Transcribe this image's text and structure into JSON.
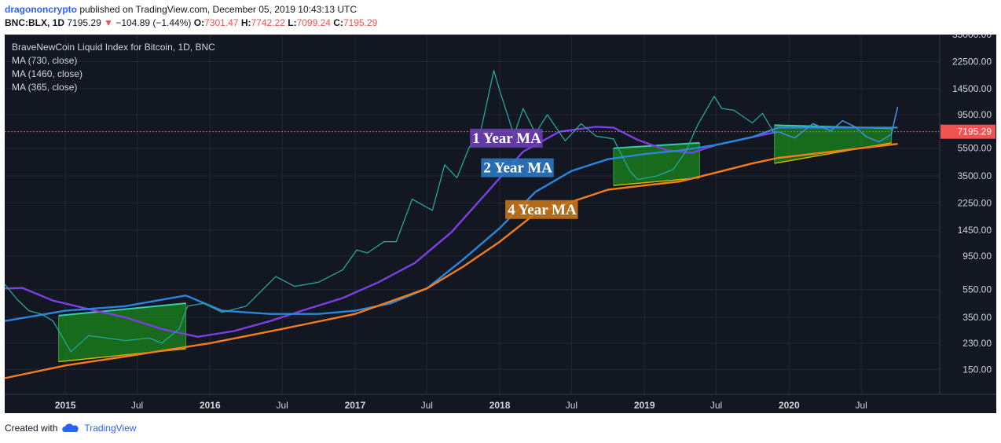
{
  "header": {
    "user": "dragononcrypto",
    "published": " published on TradingView.com, December 05, 2019 10:43:13 UTC",
    "symbol": "BNC:BLX, 1D",
    "last": "7195.29",
    "change": "−104.89 (−1.44%)",
    "o_label": "O:",
    "o_val": "7301.47",
    "h_label": "H:",
    "h_val": "7742.22",
    "l_label": "L:",
    "l_val": "7099.24",
    "c_label": "C:",
    "c_val": "7195.29"
  },
  "footer": {
    "created_with": "Created with",
    "brand": "TradingView"
  },
  "colors": {
    "background": "#131722",
    "ma365": "#7b3fe4",
    "ma730": "#2a86dc",
    "ma1460": "#f57c1f",
    "up": "#26a69a",
    "down": "#ef5350",
    "box": "#1b8a1b",
    "price_label": "#ef5350"
  },
  "chart_data": {
    "type": "line",
    "title": "BraveNewCoin Liquid Index for Bitcoin, 1D, BNC",
    "scale": "log",
    "ylim": [
      100,
      35000
    ],
    "yticks": [
      150,
      230,
      350,
      550,
      950,
      1450,
      2250,
      3500,
      5500,
      9500,
      14500,
      22500,
      35000
    ],
    "ytick_labels": [
      "150.00",
      "230.00",
      "350.00",
      "550.00",
      "950.00",
      "1450.00",
      "2250.00",
      "3500.00",
      "5500.00",
      "9500.00",
      "14500.00",
      "22500.00",
      "35000.00"
    ],
    "xlim": [
      "2014-08-01",
      "2021-01-15"
    ],
    "xticks": [
      {
        "date": "2015-01-01",
        "label": "2015",
        "bold": true
      },
      {
        "date": "2015-07-01",
        "label": "Jul",
        "bold": false
      },
      {
        "date": "2016-01-01",
        "label": "2016",
        "bold": true
      },
      {
        "date": "2016-07-01",
        "label": "Jul",
        "bold": false
      },
      {
        "date": "2017-01-01",
        "label": "2017",
        "bold": true
      },
      {
        "date": "2017-07-01",
        "label": "Jul",
        "bold": false
      },
      {
        "date": "2018-01-01",
        "label": "2018",
        "bold": true
      },
      {
        "date": "2018-07-01",
        "label": "Jul",
        "bold": false
      },
      {
        "date": "2019-01-01",
        "label": "2019",
        "bold": true
      },
      {
        "date": "2019-07-01",
        "label": "Jul",
        "bold": false
      },
      {
        "date": "2020-01-01",
        "label": "2020",
        "bold": true
      },
      {
        "date": "2020-07-01",
        "label": "Jul",
        "bold": false
      }
    ],
    "legend": [
      "MA (730, close)",
      "MA (1460, close)",
      "MA (365, close)"
    ],
    "last_price": 7195.29,
    "last_price_label": "7195.29",
    "annotations": [
      "1 Year MA",
      "2 Year MA",
      "4 Year MA"
    ],
    "series": [
      {
        "name": "1 Year MA",
        "color": "#7b3fe4",
        "points": [
          [
            "2014-08-01",
            560
          ],
          [
            "2014-09-15",
            565
          ],
          [
            "2014-12-01",
            460
          ],
          [
            "2015-03-01",
            400
          ],
          [
            "2015-06-01",
            350
          ],
          [
            "2015-09-01",
            290
          ],
          [
            "2015-12-01",
            255
          ],
          [
            "2016-03-01",
            280
          ],
          [
            "2016-06-01",
            330
          ],
          [
            "2016-09-01",
            400
          ],
          [
            "2016-12-01",
            480
          ],
          [
            "2017-03-01",
            620
          ],
          [
            "2017-06-01",
            850
          ],
          [
            "2017-09-01",
            1400
          ],
          [
            "2017-12-01",
            2700
          ],
          [
            "2018-03-01",
            5200
          ],
          [
            "2018-06-01",
            7200
          ],
          [
            "2018-09-01",
            7800
          ],
          [
            "2018-10-15",
            7700
          ],
          [
            "2018-12-15",
            6300
          ],
          [
            "2019-03-01",
            5300
          ],
          [
            "2019-05-01",
            5100
          ],
          [
            "2019-07-01",
            5800
          ],
          [
            "2019-10-01",
            6600
          ],
          [
            "2019-12-05",
            7200
          ]
        ]
      },
      {
        "name": "2 Year MA",
        "color": "#2a86dc",
        "points": [
          [
            "2014-08-01",
            330
          ],
          [
            "2015-01-01",
            390
          ],
          [
            "2015-06-01",
            420
          ],
          [
            "2015-11-01",
            500
          ],
          [
            "2016-02-01",
            390
          ],
          [
            "2016-06-01",
            370
          ],
          [
            "2016-10-01",
            370
          ],
          [
            "2017-01-01",
            390
          ],
          [
            "2017-04-01",
            440
          ],
          [
            "2017-07-01",
            560
          ],
          [
            "2017-10-01",
            900
          ],
          [
            "2018-01-01",
            1500
          ],
          [
            "2018-04-01",
            2700
          ],
          [
            "2018-07-01",
            3800
          ],
          [
            "2018-10-01",
            4600
          ],
          [
            "2019-01-01",
            5000
          ],
          [
            "2019-04-01",
            5300
          ],
          [
            "2019-07-01",
            5800
          ],
          [
            "2019-10-01",
            6600
          ],
          [
            "2019-12-05",
            7700
          ],
          [
            "2020-10-01",
            7700
          ]
        ]
      },
      {
        "name": "4 Year MA",
        "color": "#f57c1f",
        "points": [
          [
            "2014-08-01",
            130
          ],
          [
            "2015-01-01",
            160
          ],
          [
            "2015-06-01",
            185
          ],
          [
            "2016-01-01",
            230
          ],
          [
            "2016-07-01",
            290
          ],
          [
            "2017-01-01",
            370
          ],
          [
            "2017-07-01",
            560
          ],
          [
            "2017-10-01",
            800
          ],
          [
            "2018-01-01",
            1200
          ],
          [
            "2018-04-01",
            1900
          ],
          [
            "2018-07-01",
            2300
          ],
          [
            "2018-10-01",
            2800
          ],
          [
            "2019-01-01",
            3000
          ],
          [
            "2019-04-01",
            3200
          ],
          [
            "2019-07-01",
            3700
          ],
          [
            "2019-10-01",
            4300
          ],
          [
            "2019-12-05",
            4700
          ],
          [
            "2020-10-01",
            5900
          ]
        ]
      },
      {
        "name": "BLX price",
        "color": "#26a69a",
        "points": [
          [
            "2014-08-01",
            600
          ],
          [
            "2014-09-01",
            470
          ],
          [
            "2014-10-01",
            390
          ],
          [
            "2014-11-01",
            370
          ],
          [
            "2014-12-01",
            330
          ],
          [
            "2015-01-15",
            200
          ],
          [
            "2015-03-01",
            260
          ],
          [
            "2015-06-01",
            240
          ],
          [
            "2015-08-01",
            250
          ],
          [
            "2015-09-01",
            230
          ],
          [
            "2015-10-15",
            290
          ],
          [
            "2015-11-05",
            420
          ],
          [
            "2015-12-15",
            440
          ],
          [
            "2016-02-01",
            380
          ],
          [
            "2016-04-01",
            420
          ],
          [
            "2016-06-15",
            680
          ],
          [
            "2016-08-01",
            580
          ],
          [
            "2016-10-01",
            620
          ],
          [
            "2016-12-01",
            760
          ],
          [
            "2017-01-05",
            1050
          ],
          [
            "2017-02-01",
            1000
          ],
          [
            "2017-03-15",
            1200
          ],
          [
            "2017-04-15",
            1200
          ],
          [
            "2017-05-25",
            2400
          ],
          [
            "2017-07-15",
            2000
          ],
          [
            "2017-08-15",
            4200
          ],
          [
            "2017-09-15",
            3400
          ],
          [
            "2017-10-15",
            5500
          ],
          [
            "2017-11-15",
            7500
          ],
          [
            "2017-12-17",
            19500
          ],
          [
            "2018-01-01",
            14000
          ],
          [
            "2018-02-06",
            6800
          ],
          [
            "2018-03-01",
            10500
          ],
          [
            "2018-04-01",
            7000
          ],
          [
            "2018-05-01",
            9500
          ],
          [
            "2018-06-15",
            6200
          ],
          [
            "2018-07-25",
            8200
          ],
          [
            "2018-09-01",
            6700
          ],
          [
            "2018-10-15",
            6400
          ],
          [
            "2018-11-25",
            3800
          ],
          [
            "2018-12-15",
            3300
          ],
          [
            "2019-02-01",
            3500
          ],
          [
            "2019-03-15",
            3900
          ],
          [
            "2019-04-15",
            5200
          ],
          [
            "2019-05-15",
            8000
          ],
          [
            "2019-06-26",
            12800
          ],
          [
            "2019-07-15",
            10500
          ],
          [
            "2019-08-15",
            10200
          ],
          [
            "2019-09-30",
            8300
          ],
          [
            "2019-10-26",
            9700
          ],
          [
            "2019-11-25",
            7000
          ],
          [
            "2019-12-05",
            7195
          ]
        ]
      },
      {
        "name": "Projection",
        "color": "#3f8fd8",
        "points": [
          [
            "2019-12-05",
            7195
          ],
          [
            "2020-01-15",
            6500
          ],
          [
            "2020-03-01",
            8200
          ],
          [
            "2020-04-15",
            7300
          ],
          [
            "2020-05-15",
            8600
          ],
          [
            "2020-06-15",
            7800
          ],
          [
            "2020-07-15",
            6600
          ],
          [
            "2020-08-15",
            6100
          ],
          [
            "2020-09-15",
            6900
          ],
          [
            "2020-10-01",
            10800
          ]
        ]
      }
    ],
    "boxes": [
      {
        "from": "2014-12-15",
        "to": "2015-11-01",
        "y_start_low": 170,
        "y_start_high": 360,
        "y_end_low": 210,
        "y_end_high": 440
      },
      {
        "from": "2018-10-15",
        "to": "2019-05-20",
        "y_start_low": 3000,
        "y_start_high": 5500,
        "y_end_low": 3400,
        "y_end_high": 6000
      },
      {
        "from": "2019-11-25",
        "to": "2020-09-15",
        "y_start_low": 4300,
        "y_start_high": 8000,
        "y_end_low": 6000,
        "y_end_high": 7600
      }
    ]
  }
}
